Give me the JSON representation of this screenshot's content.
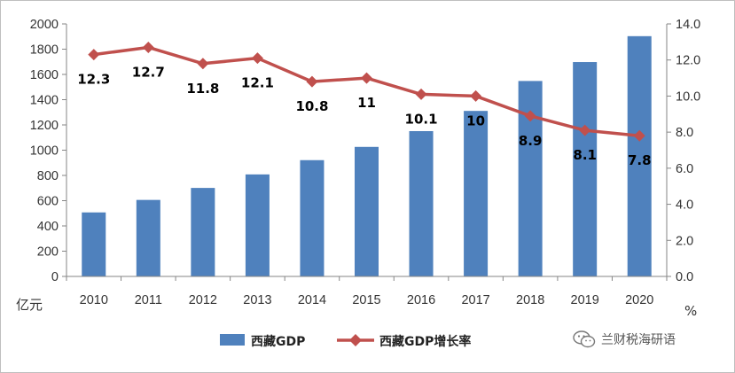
{
  "chart_data": {
    "type": "bar+line",
    "categories": [
      "2010",
      "2011",
      "2012",
      "2013",
      "2014",
      "2015",
      "2016",
      "2017",
      "2018",
      "2019",
      "2020"
    ],
    "series": [
      {
        "name": "西藏GDP",
        "type": "bar",
        "axis": "left",
        "color": "#4f81bd",
        "values": [
          507,
          606,
          701,
          808,
          921,
          1026,
          1151,
          1311,
          1548,
          1698,
          1903
        ]
      },
      {
        "name": "西藏GDP增长率",
        "type": "line",
        "axis": "right",
        "color": "#c0504d",
        "values": [
          12.3,
          12.7,
          11.8,
          12.1,
          10.8,
          11,
          10.1,
          10,
          8.9,
          8.1,
          7.8
        ],
        "data_labels": [
          "12.3",
          "12.7",
          "11.8",
          "12.1",
          "10.8",
          "11",
          "10.1",
          "10",
          "8.9",
          "8.1",
          "7.8"
        ]
      }
    ],
    "y_left": {
      "min": 0,
      "max": 2000,
      "ticks": [
        "0",
        "200",
        "400",
        "600",
        "800",
        "1000",
        "1200",
        "1400",
        "1600",
        "1800",
        "2000"
      ],
      "unit": "亿元"
    },
    "y_right": {
      "min": 0,
      "max": 14,
      "ticks": [
        "0.0",
        "2.0",
        "4.0",
        "6.0",
        "8.0",
        "10.0",
        "12.0",
        "14.0"
      ],
      "unit": "%"
    },
    "grid": false,
    "legend_position": "bottom"
  },
  "watermark": {
    "text": "兰财税海研语",
    "icon": "wechat-icon"
  }
}
